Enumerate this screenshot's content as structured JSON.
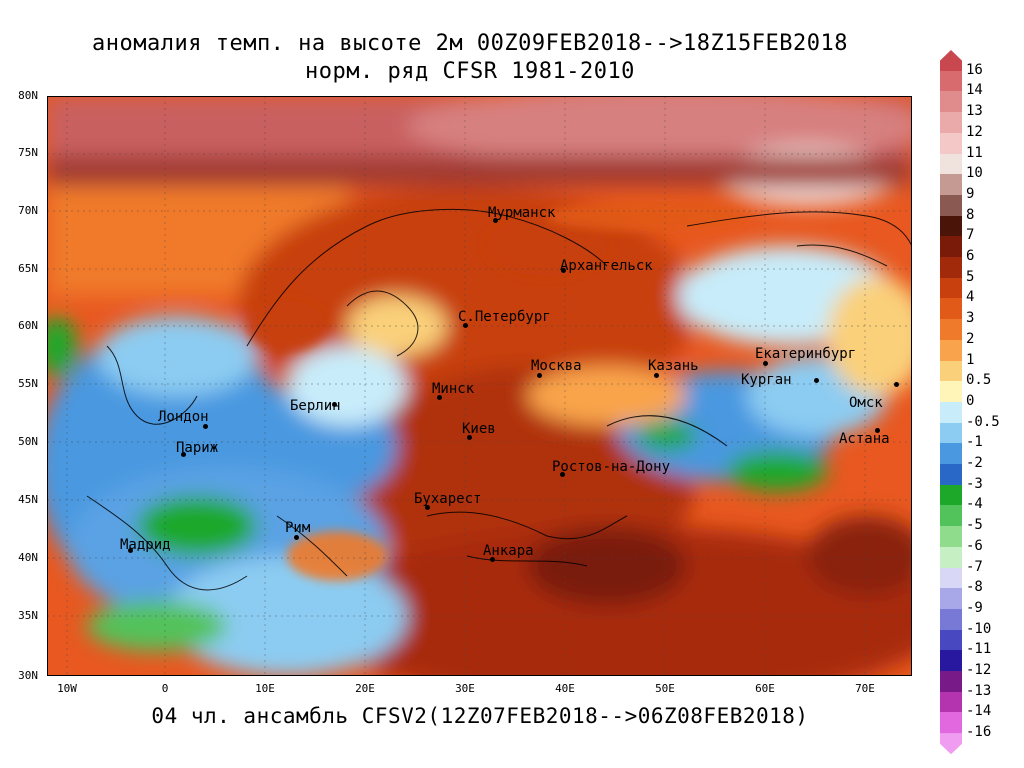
{
  "title_line1": "аномалия темп. на высоте 2м 00Z09FEB2018-->18Z15FEB2018",
  "title_line2": "норм. ряд CFSR 1981-2010",
  "footer": "04 чл. ансамбль CFSV2(12Z07FEB2018-->06Z08FEB2018)",
  "lat_labels": [
    "80N",
    "75N",
    "70N",
    "65N",
    "60N",
    "55N",
    "50N",
    "45N",
    "40N",
    "35N",
    "30N"
  ],
  "lon_labels": [
    "10W",
    "0",
    "10E",
    "20E",
    "30E",
    "40E",
    "50E",
    "60E",
    "70E"
  ],
  "cities": [
    "Мурманск",
    "Архангельск",
    "С.Петербург",
    "Москва",
    "Казань",
    "Екатеринбург",
    "Курган",
    "Омск",
    "Минск",
    "Берлин",
    "Лондон",
    "Париж",
    "Киев",
    "Астана",
    "Ростов-на-Дону",
    "Бухарест",
    "Рим",
    "Мадрид",
    "Анкара"
  ],
  "colorbar": {
    "labels": [
      "16",
      "14",
      "13",
      "12",
      "11",
      "10",
      "9",
      "8",
      "7",
      "6",
      "5",
      "4",
      "3",
      "2",
      "1",
      "0.5",
      "0",
      "-0.5",
      "-1",
      "-2",
      "-3",
      "-4",
      "-5",
      "-6",
      "-7",
      "-8",
      "-9",
      "-10",
      "-11",
      "-12",
      "-13",
      "-14",
      "-16"
    ],
    "colors": [
      "#c9474f",
      "#d76b6e",
      "#e18c8c",
      "#ebaaaa",
      "#f3c8c6",
      "#f0e2dc",
      "#c49a92",
      "#8a5a52",
      "#4a1408",
      "#7a1a08",
      "#a02a0a",
      "#c8400e",
      "#e25a18",
      "#f07a2c",
      "#f9a44c",
      "#fad07a",
      "#fff5b8",
      "#c8ecfa",
      "#8cccf2",
      "#4a98e0",
      "#2a68c8",
      "#1ea82a",
      "#52c25a",
      "#8edc8c",
      "#c6f0c4",
      "#d8d8f6",
      "#a8a8e8",
      "#7878d6",
      "#4848c0",
      "#2818a0",
      "#781a88",
      "#b434b0",
      "#e268e0",
      "#f09cf0"
    ]
  }
}
